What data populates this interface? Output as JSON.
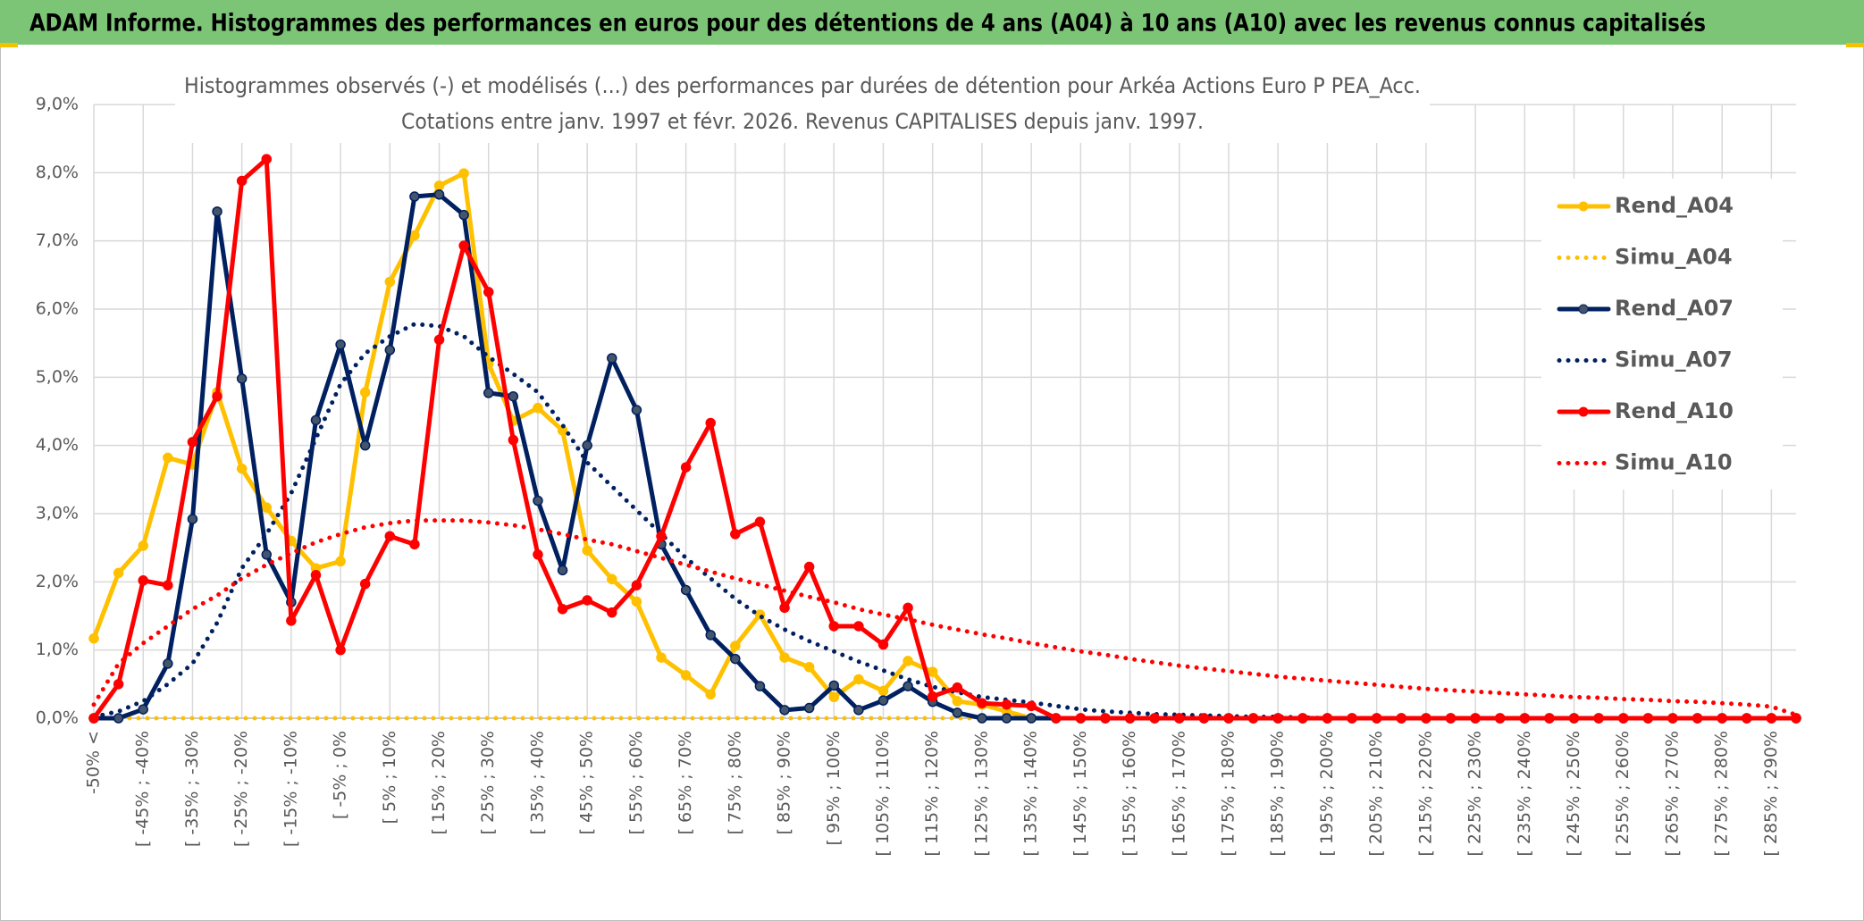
{
  "chart_data": {
    "type": "line",
    "title": "ADAM Informe. Histogrammes des performances en euros pour des détentions de 4 ans (A04) à 10 ans (A10) avec les revenus connus capitalisés",
    "subtitle": [
      "Histogrammes observés (-) et modélisés (...) des performances par durées de détention pour Arkéa Actions Euro P PEA_Acc.",
      "Cotations entre janv. 1997 et févr. 2026. Revenus CAPITALISES depuis janv. 1997."
    ],
    "categories": [
      "-50% <",
      null,
      "[ -45% ; -40%",
      null,
      "[ -35% ; -30%",
      null,
      "[ -25% ; -20%",
      null,
      "[ -15% ; -10%",
      null,
      "[ -5% ; 0%",
      null,
      "[ 5% ; 10%",
      null,
      "[ 15% ; 20%",
      null,
      "[ 25% ; 30%",
      null,
      "[ 35% ; 40%",
      null,
      "[ 45% ; 50%",
      null,
      "[ 55% ; 60%",
      null,
      "[ 65% ; 70%",
      null,
      "[ 75% ; 80%",
      null,
      "[ 85% ; 90%",
      null,
      "[ 95% ; 100%",
      null,
      "[ 105% ; 110%",
      null,
      "[ 115% ; 120%",
      null,
      "[ 125% ; 130%",
      null,
      "[ 135% ; 140%",
      null,
      "[ 145% ; 150%",
      null,
      "[ 155% ; 160%",
      null,
      "[ 165% ; 170%",
      null,
      "[ 175% ; 180%",
      null,
      "[ 185% ; 190%",
      null,
      "[ 195% ; 200%",
      null,
      "[ 205% ; 210%",
      null,
      "[ 215% ; 220%",
      null,
      "[ 225% ; 230%",
      null,
      "[ 235% ; 240%",
      null,
      "[ 245% ; 250%",
      null,
      "[ 255% ; 260%",
      null,
      "[ 265% ; 270%",
      null,
      "[ 275% ; 280%",
      null,
      "[ 285% ; 290%",
      null
    ],
    "series": [
      {
        "name": "Rend_A04",
        "color": "#FFC000",
        "style": "solid",
        "markers": true,
        "values": [
          1.17,
          2.13,
          2.53,
          3.82,
          3.72,
          4.78,
          3.66,
          3.09,
          2.6,
          2.2,
          2.3,
          4.78,
          6.4,
          7.08,
          7.81,
          7.99,
          5.2,
          4.36,
          4.55,
          4.22,
          2.46,
          2.04,
          1.71,
          0.89,
          0.63,
          0.35,
          1.06,
          1.52,
          0.89,
          0.75,
          0.31,
          0.57,
          0.4,
          0.84,
          0.68,
          0.25,
          0.2,
          0.1,
          0,
          0,
          0,
          0,
          0,
          0,
          0,
          0,
          0,
          0,
          0,
          0,
          0,
          0,
          0,
          0,
          0,
          0,
          0,
          0,
          0,
          0,
          0,
          0,
          0,
          0,
          0,
          0,
          0,
          0,
          0,
          0
        ]
      },
      {
        "name": "Simu_A04",
        "color": "#FFC000",
        "style": "dotted",
        "markers": false,
        "values": [
          0,
          0,
          0,
          0,
          0,
          0,
          0,
          0,
          0,
          0,
          0,
          0,
          0,
          0,
          0,
          0,
          0,
          0,
          0,
          0,
          0,
          0,
          0,
          0,
          0,
          0,
          0,
          0,
          0,
          0,
          0,
          0,
          0,
          0,
          0,
          0,
          0,
          0,
          0,
          0,
          0,
          0,
          0,
          0,
          0,
          0,
          0,
          0,
          0,
          0,
          0,
          0,
          0,
          0,
          0,
          0,
          0,
          0,
          0,
          0,
          0,
          0,
          0,
          0,
          0,
          0,
          0,
          0,
          0,
          0
        ]
      },
      {
        "name": "Rend_A07",
        "color": "#002060",
        "style": "solid",
        "markers": true,
        "values": [
          0,
          0,
          0.13,
          0.8,
          2.92,
          7.43,
          4.98,
          2.4,
          1.7,
          4.37,
          5.48,
          4.0,
          5.4,
          7.65,
          7.68,
          7.38,
          4.77,
          4.72,
          3.19,
          2.17,
          4.0,
          5.28,
          4.52,
          2.55,
          1.88,
          1.22,
          0.87,
          0.47,
          0.12,
          0.15,
          0.48,
          0.12,
          0.26,
          0.47,
          0.24,
          0.08,
          0,
          0,
          0,
          0,
          0,
          0,
          0,
          0,
          0,
          0,
          0,
          0,
          0,
          0,
          0,
          0,
          0,
          0,
          0,
          0,
          0,
          0,
          0,
          0,
          0,
          0,
          0,
          0,
          0,
          0,
          0,
          0,
          0,
          0
        ]
      },
      {
        "name": "Simu_A07",
        "color": "#002060",
        "style": "dotted",
        "markers": false,
        "values": [
          0.02,
          0.1,
          0.25,
          0.5,
          0.8,
          1.4,
          2.2,
          2.7,
          3.3,
          4.1,
          4.9,
          5.35,
          5.6,
          5.78,
          5.75,
          5.6,
          5.3,
          5.05,
          4.78,
          4.3,
          3.75,
          3.4,
          3.05,
          2.7,
          2.35,
          2.05,
          1.75,
          1.5,
          1.3,
          1.13,
          0.98,
          0.83,
          0.7,
          0.57,
          0.46,
          0.38,
          0.31,
          0.27,
          0.23,
          0.18,
          0.13,
          0.1,
          0.08,
          0.06,
          0.05,
          0.04,
          0.03,
          0.02,
          0.02,
          0.01,
          0,
          0,
          0,
          0,
          0,
          0,
          0,
          0,
          0,
          0,
          0,
          0,
          0,
          0,
          0,
          0,
          0,
          0,
          0,
          0
        ]
      },
      {
        "name": "Rend_A10",
        "color": "#FF0000",
        "style": "solid",
        "markers": true,
        "values": [
          0,
          0.5,
          2.02,
          1.95,
          4.05,
          4.72,
          7.88,
          8.2,
          1.43,
          2.1,
          1.0,
          1.97,
          2.67,
          2.55,
          5.55,
          6.93,
          6.25,
          4.08,
          2.4,
          1.6,
          1.73,
          1.55,
          1.95,
          2.67,
          3.68,
          4.33,
          2.7,
          2.88,
          1.62,
          2.22,
          1.35,
          1.35,
          1.08,
          1.62,
          0.32,
          0.45,
          0.22,
          0.2,
          0.18,
          0,
          0,
          0,
          0,
          0,
          0,
          0,
          0,
          0,
          0,
          0,
          0,
          0,
          0,
          0,
          0,
          0,
          0,
          0,
          0,
          0,
          0,
          0,
          0,
          0,
          0,
          0,
          0,
          0,
          0,
          0
        ]
      },
      {
        "name": "Simu_A10",
        "color": "#FF0000",
        "style": "dotted",
        "markers": false,
        "values": [
          0.2,
          0.8,
          1.1,
          1.35,
          1.6,
          1.8,
          2.05,
          2.25,
          2.42,
          2.58,
          2.7,
          2.8,
          2.86,
          2.9,
          2.9,
          2.9,
          2.87,
          2.83,
          2.77,
          2.7,
          2.62,
          2.55,
          2.45,
          2.35,
          2.25,
          2.15,
          2.05,
          1.96,
          1.87,
          1.78,
          1.7,
          1.6,
          1.52,
          1.45,
          1.37,
          1.3,
          1.23,
          1.17,
          1.1,
          1.04,
          0.98,
          0.93,
          0.87,
          0.82,
          0.77,
          0.73,
          0.69,
          0.65,
          0.61,
          0.58,
          0.55,
          0.52,
          0.49,
          0.46,
          0.43,
          0.41,
          0.39,
          0.37,
          0.35,
          0.33,
          0.31,
          0.3,
          0.28,
          0.27,
          0.25,
          0.24,
          0.22,
          0.2,
          0.17,
          0.05
        ]
      }
    ],
    "ylim": [
      0,
      9
    ],
    "yticks": [
      {
        "value": 0,
        "label": "0,0%"
      },
      {
        "value": 1,
        "label": "1,0%"
      },
      {
        "value": 2,
        "label": "2,0%"
      },
      {
        "value": 3,
        "label": "3,0%"
      },
      {
        "value": 4,
        "label": "4,0%"
      },
      {
        "value": 5,
        "label": "5,0%"
      },
      {
        "value": 6,
        "label": "6,0%"
      },
      {
        "value": 7,
        "label": "7,0%"
      },
      {
        "value": 8,
        "label": "8,0%"
      },
      {
        "value": 9,
        "label": "9,0%"
      }
    ],
    "grid": true
  }
}
